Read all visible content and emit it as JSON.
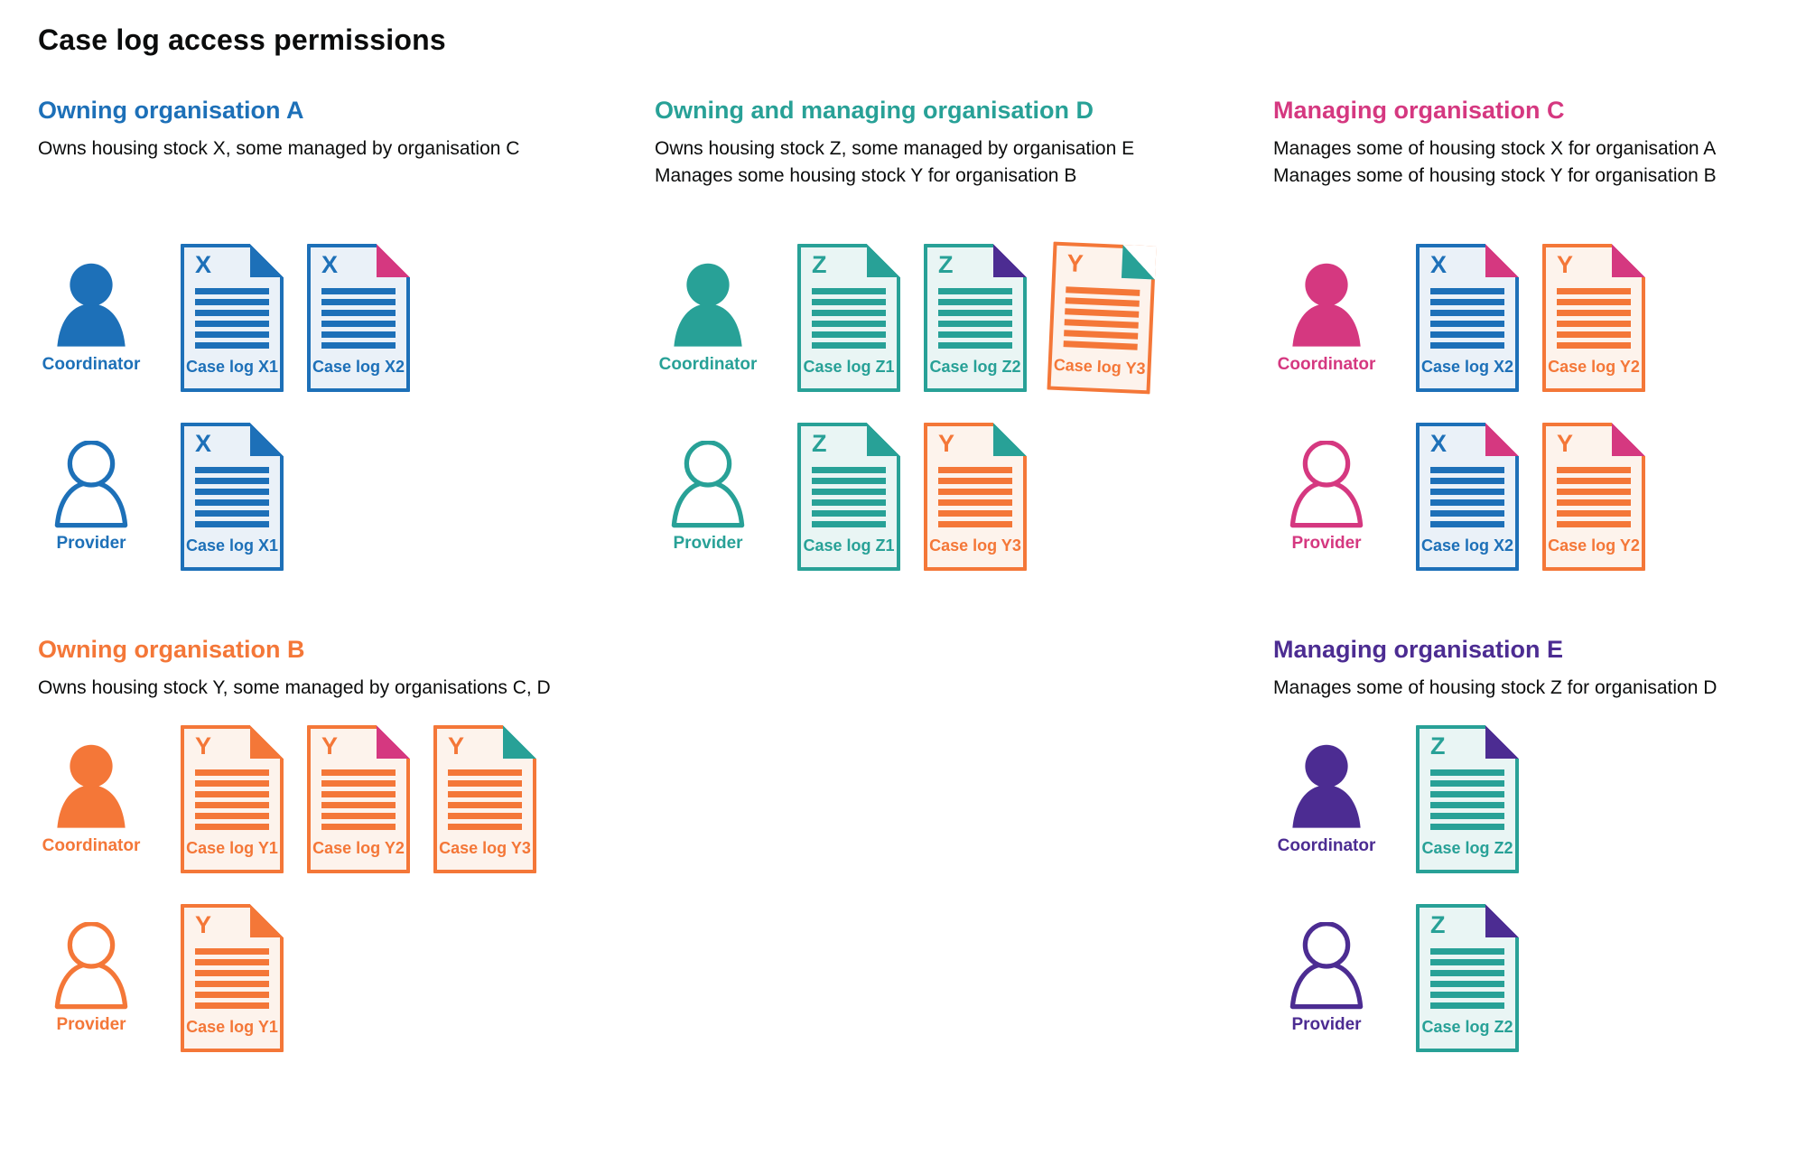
{
  "page": {
    "title": "Case log access permissions"
  },
  "palette": {
    "blue": {
      "main": "#1d70b8",
      "tint": "#eaf1f8"
    },
    "teal": {
      "main": "#28a197",
      "tint": "#e9f5f4"
    },
    "orange": {
      "main": "#f47738",
      "tint": "#fdf3ec"
    },
    "pink": {
      "main": "#d53880",
      "tint": "#fbebf3"
    },
    "purple": {
      "main": "#4c2c92",
      "tint": "#edeaf4"
    }
  },
  "roles": {
    "coordinator_label": "Coordinator",
    "provider_label": "Provider"
  },
  "sections": [
    {
      "id": "owning-organisation-a",
      "title": "Owning organisation A",
      "color": "blue",
      "row": 1,
      "col": 1,
      "compact": false,
      "description": [
        "Owns housing stock X, some managed by organisation C"
      ],
      "rows": [
        {
          "role": "Coordinator",
          "person": "filled",
          "docs": [
            {
              "letter": "X",
              "caption": "Case log X1",
              "doc": "blue",
              "fold": "blue"
            },
            {
              "letter": "X",
              "caption": "Case log X2",
              "doc": "blue",
              "fold": "pink"
            }
          ]
        },
        {
          "role": "Provider",
          "person": "outline",
          "docs": [
            {
              "letter": "X",
              "caption": "Case log X1",
              "doc": "blue",
              "fold": "blue"
            }
          ]
        }
      ]
    },
    {
      "id": "owning-and-managing-organisation-d",
      "title": "Owning and managing organisation D",
      "color": "teal",
      "row": 1,
      "col": 2,
      "compact": false,
      "description": [
        "Owns housing stock Z, some managed by organisation E",
        "Manages some housing stock Y for organisation B"
      ],
      "rows": [
        {
          "role": "Coordinator",
          "person": "filled",
          "docs": [
            {
              "letter": "Z",
              "caption": "Case log Z1",
              "doc": "teal",
              "fold": "teal"
            },
            {
              "letter": "Z",
              "caption": "Case log Z2",
              "doc": "teal",
              "fold": "purple"
            },
            {
              "letter": "Y",
              "caption": "Case log Y3",
              "doc": "orange",
              "fold": "teal",
              "tilt": 2.5
            }
          ]
        },
        {
          "role": "Provider",
          "person": "outline",
          "docs": [
            {
              "letter": "Z",
              "caption": "Case log Z1",
              "doc": "teal",
              "fold": "teal"
            },
            {
              "letter": "Y",
              "caption": "Case log Y3",
              "doc": "orange",
              "fold": "teal"
            }
          ]
        }
      ]
    },
    {
      "id": "managing-organisation-c",
      "title": "Managing organisation C",
      "color": "pink",
      "row": 1,
      "col": 3,
      "compact": false,
      "description": [
        "Manages some of housing stock X for organisation A",
        "Manages some of housing stock Y for organisation B"
      ],
      "rows": [
        {
          "role": "Coordinator",
          "person": "filled",
          "docs": [
            {
              "letter": "X",
              "caption": "Case log X2",
              "doc": "blue",
              "fold": "pink"
            },
            {
              "letter": "Y",
              "caption": "Case log Y2",
              "doc": "orange",
              "fold": "pink"
            }
          ]
        },
        {
          "role": "Provider",
          "person": "outline",
          "docs": [
            {
              "letter": "X",
              "caption": "Case log X2",
              "doc": "blue",
              "fold": "pink"
            },
            {
              "letter": "Y",
              "caption": "Case log Y2",
              "doc": "orange",
              "fold": "pink"
            }
          ]
        }
      ]
    },
    {
      "id": "owning-organisation-b",
      "title": "Owning organisation B",
      "color": "orange",
      "row": 2,
      "col": 1,
      "compact": true,
      "description": [
        "Owns housing stock Y, some managed by organisations C, D"
      ],
      "rows": [
        {
          "role": "Coordinator",
          "person": "filled",
          "docs": [
            {
              "letter": "Y",
              "caption": "Case log Y1",
              "doc": "orange",
              "fold": "orange"
            },
            {
              "letter": "Y",
              "caption": "Case log Y2",
              "doc": "orange",
              "fold": "pink"
            },
            {
              "letter": "Y",
              "caption": "Case log Y3",
              "doc": "orange",
              "fold": "teal"
            }
          ]
        },
        {
          "role": "Provider",
          "person": "outline",
          "docs": [
            {
              "letter": "Y",
              "caption": "Case log Y1",
              "doc": "orange",
              "fold": "orange"
            }
          ]
        }
      ]
    },
    {
      "id": "managing-organisation-e",
      "title": "Managing organisation E",
      "color": "purple",
      "row": 2,
      "col": 3,
      "compact": true,
      "description": [
        "Manages some of housing stock Z for organisation D"
      ],
      "rows": [
        {
          "role": "Coordinator",
          "person": "filled",
          "docs": [
            {
              "letter": "Z",
              "caption": "Case log Z2",
              "doc": "teal",
              "fold": "purple"
            }
          ]
        },
        {
          "role": "Provider",
          "person": "outline",
          "docs": [
            {
              "letter": "Z",
              "caption": "Case log Z2",
              "doc": "teal",
              "fold": "purple"
            }
          ]
        }
      ]
    }
  ]
}
